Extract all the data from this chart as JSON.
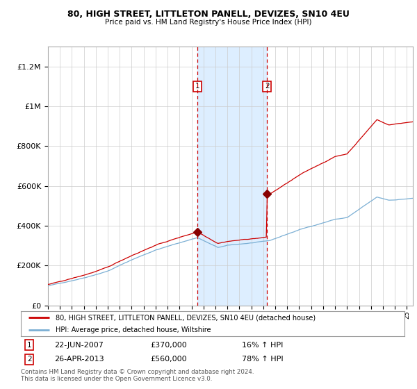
{
  "title": "80, HIGH STREET, LITTLETON PANELL, DEVIZES, SN10 4EU",
  "subtitle": "Price paid vs. HM Land Registry's House Price Index (HPI)",
  "red_legend": "80, HIGH STREET, LITTLETON PANELL, DEVIZES, SN10 4EU (detached house)",
  "blue_legend": "HPI: Average price, detached house, Wiltshire",
  "transaction1_date": "22-JUN-2007",
  "transaction1_price": 370000,
  "transaction1_label": "£370,000",
  "transaction1_hpi": "16% ↑ HPI",
  "transaction1_year": 2007.47,
  "transaction2_date": "26-APR-2013",
  "transaction2_price": 560000,
  "transaction2_label": "£560,000",
  "transaction2_hpi": "78% ↑ HPI",
  "transaction2_year": 2013.32,
  "shade_start": 2007.47,
  "shade_end": 2013.32,
  "ylim_min": 0,
  "ylim_max": 1300000,
  "xlim_min": 1995.0,
  "xlim_max": 2025.5,
  "footnote": "Contains HM Land Registry data © Crown copyright and database right 2024.\nThis data is licensed under the Open Government Licence v3.0.",
  "background_color": "#ffffff",
  "plot_bg": "#ffffff",
  "grid_color": "#cccccc",
  "red_color": "#cc0000",
  "blue_color": "#7bafd4",
  "shade_color": "#ddeeff",
  "marker_color": "#880000"
}
